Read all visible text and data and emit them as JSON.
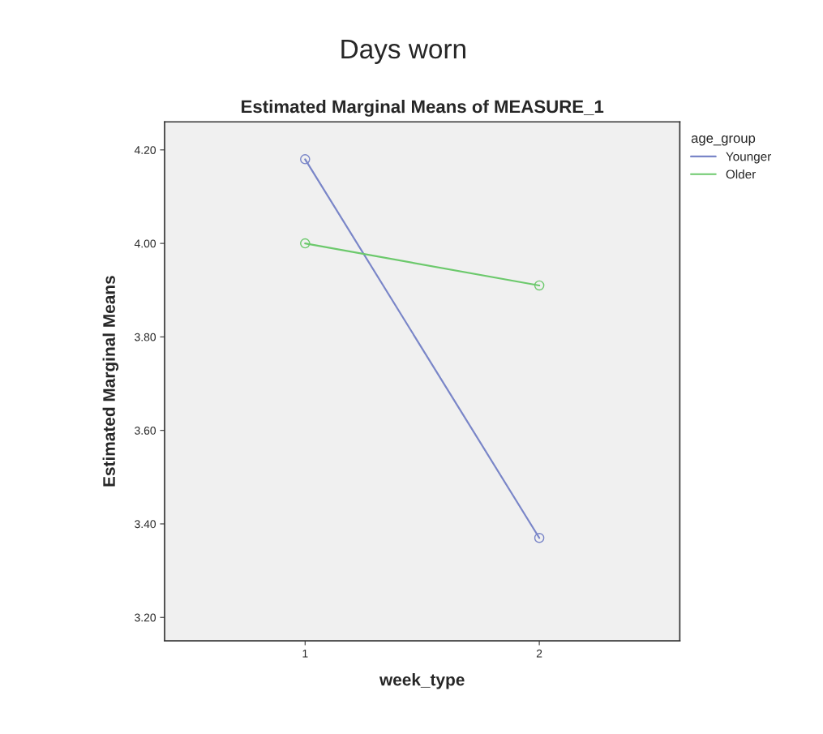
{
  "chart_data": {
    "type": "line",
    "title": "Days worn",
    "subtitle": "Estimated Marginal Means of MEASURE_1",
    "xlabel": "week_type",
    "ylabel": "Estimated Marginal Means",
    "legend_title": "age_group",
    "categories": [
      "1",
      "2"
    ],
    "series": [
      {
        "name": "Younger",
        "color": "#7a86c8",
        "values": [
          4.18,
          3.37
        ]
      },
      {
        "name": "Older",
        "color": "#6cc96c",
        "values": [
          4.0,
          3.91
        ]
      }
    ],
    "ylim": [
      3.15,
      4.26
    ],
    "yticks": [
      {
        "value": 3.2,
        "label": "3.20"
      },
      {
        "value": 3.4,
        "label": "3.40"
      },
      {
        "value": 3.6,
        "label": "3.60"
      },
      {
        "value": 3.8,
        "label": "3.80"
      },
      {
        "value": 4.0,
        "label": "4.00"
      },
      {
        "value": 4.2,
        "label": "4.20"
      }
    ],
    "grid": false,
    "legend": "top right",
    "marker": "circle",
    "line_style": "solid"
  }
}
